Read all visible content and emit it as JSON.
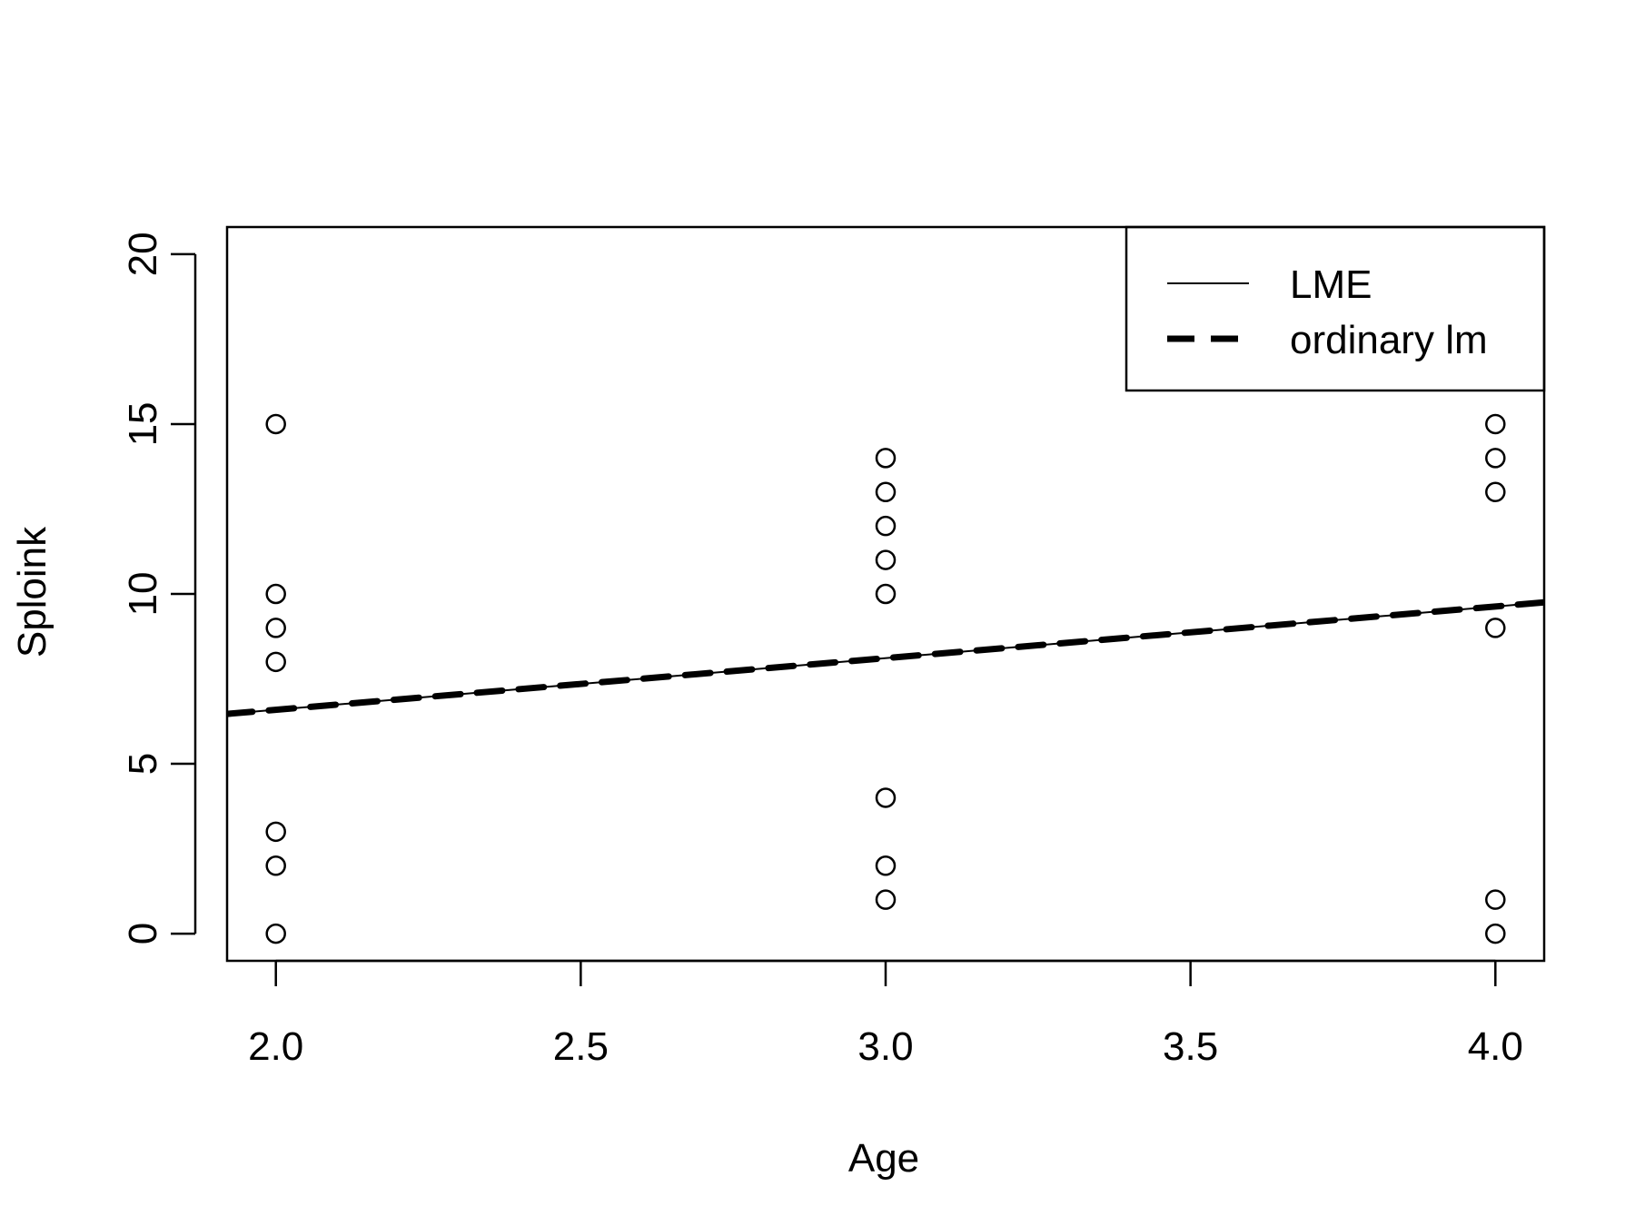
{
  "chart_data": {
    "type": "scatter",
    "title": "",
    "xlabel": "Age",
    "ylabel": "Sploink",
    "xlim": [
      1.92,
      4.08
    ],
    "ylim": [
      -0.8,
      20.8
    ],
    "x_ticks": [
      2.0,
      2.5,
      3.0,
      3.5,
      4.0
    ],
    "x_tick_labels": [
      "2.0",
      "2.5",
      "3.0",
      "3.5",
      "4.0"
    ],
    "y_ticks": [
      0,
      5,
      10,
      15,
      20
    ],
    "y_tick_labels": [
      "0",
      "5",
      "10",
      "15",
      "20"
    ],
    "grid": false,
    "legend_position": "top-right",
    "points": [
      {
        "x": 2,
        "y": 0
      },
      {
        "x": 2,
        "y": 2
      },
      {
        "x": 2,
        "y": 3
      },
      {
        "x": 2,
        "y": 8
      },
      {
        "x": 2,
        "y": 9
      },
      {
        "x": 2,
        "y": 10
      },
      {
        "x": 2,
        "y": 15
      },
      {
        "x": 3,
        "y": 1
      },
      {
        "x": 3,
        "y": 2
      },
      {
        "x": 3,
        "y": 4
      },
      {
        "x": 3,
        "y": 10
      },
      {
        "x": 3,
        "y": 11
      },
      {
        "x": 3,
        "y": 12
      },
      {
        "x": 3,
        "y": 13
      },
      {
        "x": 3,
        "y": 14
      },
      {
        "x": 4,
        "y": 0
      },
      {
        "x": 4,
        "y": 1
      },
      {
        "x": 4,
        "y": 9
      },
      {
        "x": 4,
        "y": 13
      },
      {
        "x": 4,
        "y": 14
      },
      {
        "x": 4,
        "y": 15
      }
    ],
    "lines": [
      {
        "name": "LME",
        "style": "solid",
        "intercept": 3.55,
        "slope": 1.52
      },
      {
        "name": "ordinary lm",
        "style": "dashed",
        "intercept": 3.55,
        "slope": 1.52
      }
    ]
  }
}
